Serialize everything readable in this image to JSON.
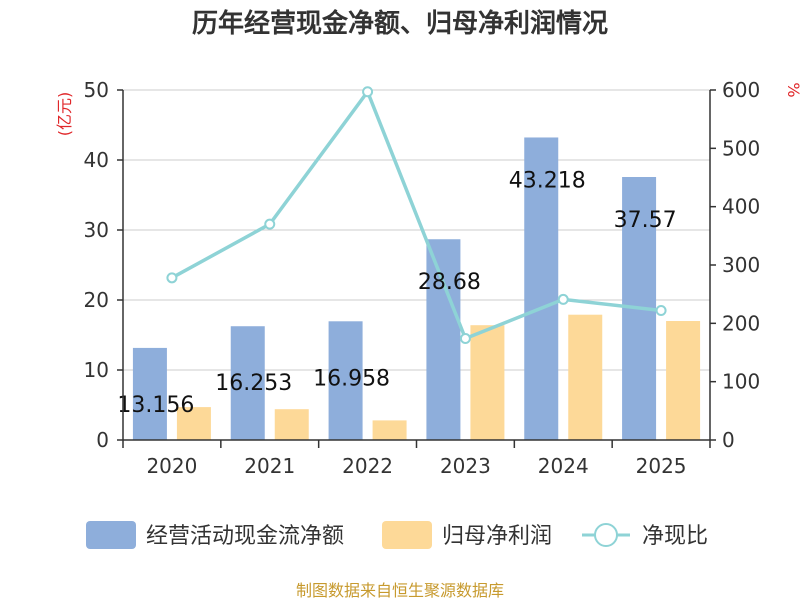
{
  "chart_data": {
    "type": "bar",
    "title": "历年经营现金净额、归母净利润情况",
    "categories": [
      "2020",
      "2021",
      "2022",
      "2023",
      "2024",
      "2025"
    ],
    "series": [
      {
        "name": "经营活动现金流净额",
        "type": "bar",
        "axis": "left",
        "color": "#8eaedb",
        "values": [
          13.156,
          16.253,
          16.958,
          28.68,
          43.218,
          37.57
        ],
        "labels": [
          "13.156",
          "16.253",
          "16.958",
          "28.68",
          "43.218",
          "37.57"
        ]
      },
      {
        "name": "归母净利润",
        "type": "bar",
        "axis": "left",
        "color": "#fdd998",
        "values": [
          4.7,
          4.4,
          2.8,
          16.4,
          17.9,
          17.0
        ]
      },
      {
        "name": "净现比",
        "type": "line",
        "axis": "right",
        "color": "#8ed3d6",
        "values": [
          278,
          370,
          597,
          174,
          241,
          222
        ]
      }
    ],
    "y_left": {
      "unit": "(亿元)",
      "ticks": [
        "0",
        "10",
        "20",
        "30",
        "40",
        "50"
      ],
      "range": [
        0,
        50
      ]
    },
    "y_right": {
      "unit": "%",
      "ticks": [
        "0",
        "100",
        "200",
        "300",
        "400",
        "500",
        "600"
      ],
      "range": [
        0,
        600
      ]
    },
    "grid": true,
    "legend_position": "bottom"
  },
  "source": "制图数据来自恒生聚源数据库"
}
